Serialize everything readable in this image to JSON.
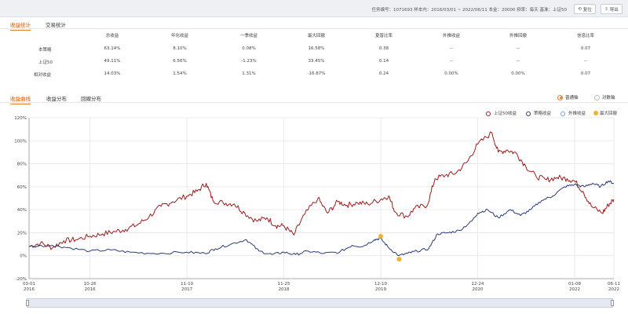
{
  "header": {
    "info": "任务编号：1071693  样本内：2016/03/01 ~ 2022/06/11  本金：20000  频率：每天  基准：上证50",
    "refresh_label": "复位",
    "export_label": "导出"
  },
  "tabs_top": [
    {
      "label": "收益统计",
      "active": true
    },
    {
      "label": "交易统计",
      "active": false
    }
  ],
  "stats": {
    "headers": [
      "",
      "总收益",
      "年化收益",
      "一季收益",
      "最大回撤",
      "夏普比率",
      "外推收益",
      "外推回撤",
      "信息比率"
    ],
    "rows": [
      [
        "本策略",
        "63.14%",
        "8.10%",
        "0.08%",
        "16.58%",
        "0.38",
        "--",
        "--",
        "0.07"
      ],
      [
        "上证50",
        "49.11%",
        "6.56%",
        "-1.23%",
        "33.45%",
        "0.14",
        "--",
        "--",
        "--"
      ],
      [
        "相对收益",
        "14.03%",
        "1.54%",
        "1.31%",
        "-16.87%",
        "0.24",
        "0.00%",
        "0.00%",
        "0.07"
      ]
    ]
  },
  "tabs_chart": [
    {
      "label": "收益曲线",
      "active": true
    },
    {
      "label": "收益分布",
      "active": false
    },
    {
      "label": "回撤分布",
      "active": false
    }
  ],
  "scale": {
    "normal_label": "普通轴",
    "log_label": "对数轴",
    "selected": "normal"
  },
  "colors": {
    "accent": "#e67e22",
    "benchmark": "#9b1c1c",
    "strategy": "#283c7a",
    "extrapolated": "#7ba7d9",
    "drawdown": "#f0b429"
  },
  "chart_data": {
    "type": "line",
    "legend": [
      "上证50收益",
      "策略收益",
      "外推收益",
      "最大回撤"
    ],
    "legend_position": "top-right",
    "ylim": [
      -20,
      120
    ],
    "yticks": [
      "-20%",
      "0%",
      "20%",
      "40%",
      "60%",
      "80%",
      "100%",
      "120%"
    ],
    "yticks_values": [
      -20,
      0,
      20,
      40,
      60,
      80,
      100,
      120
    ],
    "xticks": [
      {
        "date": "2016-03-01",
        "label": [
          "03-01",
          "2016"
        ]
      },
      {
        "date": "2016-10-26",
        "label": [
          "10-26",
          "2016"
        ]
      },
      {
        "date": "2017-11-10",
        "label": [
          "11-10",
          "2017"
        ]
      },
      {
        "date": "2018-11-25",
        "label": [
          "11-25",
          "2018"
        ]
      },
      {
        "date": "2019-12-10",
        "label": [
          "12-10",
          "2019"
        ]
      },
      {
        "date": "2020-12-24",
        "label": [
          "12-24",
          "2020"
        ]
      },
      {
        "date": "2022-01-08",
        "label": [
          "01-08",
          "2022"
        ]
      },
      {
        "date": "2022-06-11",
        "label": [
          "06-11",
          "2022"
        ]
      }
    ],
    "grid": true,
    "series": [
      {
        "name": "上证50收益",
        "color": "#9b1c1c",
        "points": [
          [
            "2016-03-01",
            8
          ],
          [
            "2016-04-15",
            11
          ],
          [
            "2016-06-01",
            7
          ],
          [
            "2016-07-15",
            13
          ],
          [
            "2016-09-01",
            14
          ],
          [
            "2016-10-26",
            17
          ],
          [
            "2016-12-15",
            19
          ],
          [
            "2017-02-01",
            21
          ],
          [
            "2017-03-15",
            23
          ],
          [
            "2017-05-01",
            27
          ],
          [
            "2017-06-15",
            34
          ],
          [
            "2017-08-01",
            43
          ],
          [
            "2017-09-15",
            47
          ],
          [
            "2017-11-10",
            52
          ],
          [
            "2017-12-20",
            56
          ],
          [
            "2018-01-25",
            63
          ],
          [
            "2018-02-20",
            48
          ],
          [
            "2018-04-01",
            46
          ],
          [
            "2018-05-15",
            45
          ],
          [
            "2018-06-25",
            37
          ],
          [
            "2018-08-10",
            30
          ],
          [
            "2018-09-20",
            33
          ],
          [
            "2018-10-25",
            26
          ],
          [
            "2018-11-25",
            26
          ],
          [
            "2019-01-03",
            18
          ],
          [
            "2019-02-15",
            36
          ],
          [
            "2019-04-08",
            50
          ],
          [
            "2019-05-15",
            37
          ],
          [
            "2019-06-25",
            47
          ],
          [
            "2019-07-30",
            44
          ],
          [
            "2019-09-10",
            46
          ],
          [
            "2019-10-20",
            45
          ],
          [
            "2019-12-10",
            49
          ],
          [
            "2020-01-10",
            52
          ],
          [
            "2020-02-05",
            38
          ],
          [
            "2020-03-23",
            34
          ],
          [
            "2020-04-20",
            41
          ],
          [
            "2020-06-10",
            44
          ],
          [
            "2020-07-10",
            67
          ],
          [
            "2020-08-20",
            70
          ],
          [
            "2020-10-01",
            72
          ],
          [
            "2020-11-15",
            82
          ],
          [
            "2020-12-24",
            97
          ],
          [
            "2021-02-18",
            107
          ],
          [
            "2021-03-15",
            90
          ],
          [
            "2021-04-20",
            92
          ],
          [
            "2021-05-25",
            89
          ],
          [
            "2021-06-30",
            78
          ],
          [
            "2021-08-10",
            69
          ],
          [
            "2021-09-20",
            66
          ],
          [
            "2021-11-01",
            68
          ],
          [
            "2021-12-10",
            67
          ],
          [
            "2022-01-08",
            65
          ],
          [
            "2022-02-10",
            56
          ],
          [
            "2022-03-15",
            43
          ],
          [
            "2022-04-27",
            37
          ],
          [
            "2022-05-20",
            44
          ],
          [
            "2022-06-11",
            49
          ]
        ]
      },
      {
        "name": "策略收益",
        "color": "#283c7a",
        "points": [
          [
            "2016-03-01",
            8
          ],
          [
            "2016-06-01",
            9
          ],
          [
            "2016-08-01",
            7
          ],
          [
            "2016-10-26",
            4
          ],
          [
            "2017-01-15",
            5
          ],
          [
            "2017-04-01",
            3
          ],
          [
            "2017-07-01",
            2
          ],
          [
            "2017-11-10",
            3
          ],
          [
            "2018-01-20",
            2
          ],
          [
            "2018-03-01",
            6
          ],
          [
            "2018-05-01",
            10
          ],
          [
            "2018-07-01",
            14
          ],
          [
            "2018-08-20",
            4
          ],
          [
            "2018-10-10",
            1
          ],
          [
            "2018-11-25",
            3
          ],
          [
            "2019-01-10",
            1
          ],
          [
            "2019-03-01",
            4
          ],
          [
            "2019-05-01",
            2
          ],
          [
            "2019-07-01",
            3
          ],
          [
            "2019-08-20",
            9
          ],
          [
            "2019-10-01",
            8
          ],
          [
            "2019-11-15",
            14
          ],
          [
            "2019-12-10",
            15
          ],
          [
            "2020-01-10",
            7
          ],
          [
            "2020-02-20",
            0
          ],
          [
            "2020-03-25",
            2
          ],
          [
            "2020-04-30",
            4
          ],
          [
            "2020-06-15",
            6
          ],
          [
            "2020-07-20",
            19
          ],
          [
            "2020-09-01",
            20
          ],
          [
            "2020-10-15",
            22
          ],
          [
            "2020-12-01",
            30
          ],
          [
            "2020-12-24",
            37
          ],
          [
            "2021-02-01",
            40
          ],
          [
            "2021-03-15",
            33
          ],
          [
            "2021-05-01",
            40
          ],
          [
            "2021-06-10",
            35
          ],
          [
            "2021-07-20",
            40
          ],
          [
            "2021-09-01",
            48
          ],
          [
            "2021-10-15",
            52
          ],
          [
            "2021-12-01",
            60
          ],
          [
            "2022-01-08",
            62
          ],
          [
            "2022-02-15",
            60
          ],
          [
            "2022-03-20",
            63
          ],
          [
            "2022-04-20",
            60
          ],
          [
            "2022-05-20",
            65
          ],
          [
            "2022-06-11",
            63
          ]
        ]
      },
      {
        "name": "外推收益",
        "color": "#7ba7d9",
        "points": []
      }
    ],
    "markers": [
      {
        "name": "最大回撤",
        "color": "#f0b429",
        "points": [
          [
            "2019-12-10",
            17
          ],
          [
            "2020-02-20",
            -3
          ]
        ]
      }
    ]
  }
}
